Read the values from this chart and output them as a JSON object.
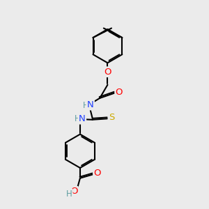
{
  "bg_color": "#ebebeb",
  "bond_color": "#000000",
  "bond_width": 1.5,
  "atom_colors": {
    "C": "#000000",
    "H": "#5f9ea0",
    "N": "#1e3fff",
    "O": "#ff0000",
    "S": "#ccaa00"
  },
  "font_size": 8.5
}
